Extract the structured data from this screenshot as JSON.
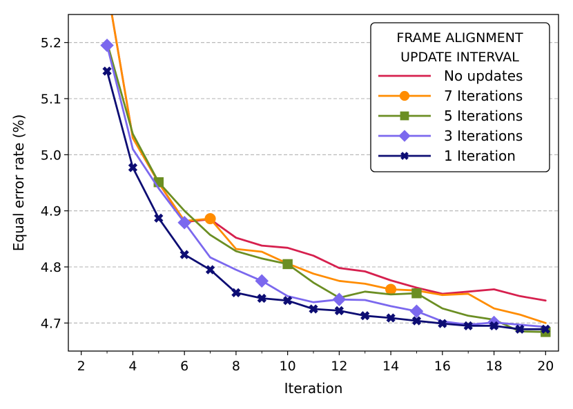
{
  "chart_data": {
    "type": "line",
    "title": "",
    "xlabel": "Iteration",
    "ylabel": "Equal error rate (%)",
    "xlim": [
      1.5,
      20.5
    ],
    "ylim": [
      4.65,
      5.25
    ],
    "xticks": [
      2,
      4,
      6,
      8,
      10,
      12,
      14,
      16,
      18,
      20
    ],
    "yticks": [
      4.7,
      4.8,
      4.9,
      5.0,
      5.1,
      5.2
    ],
    "grid": "y-dashed",
    "legend": {
      "placement": "top-right",
      "title_lines": [
        "FRAME ALIGNMENT",
        "UPDATE INTERVAL"
      ]
    },
    "series": [
      {
        "name": "No updates",
        "color": "#d6204e",
        "marker": "none",
        "x": [
          3,
          4,
          5,
          6,
          7,
          8,
          9,
          10,
          11,
          12,
          13,
          14,
          15,
          16,
          17,
          18,
          19,
          20
        ],
        "y": [
          5.3,
          5.03,
          4.95,
          4.88,
          4.885,
          4.852,
          4.838,
          4.834,
          4.82,
          4.798,
          4.792,
          4.776,
          4.763,
          4.752,
          4.756,
          4.76,
          4.748,
          4.74
        ]
      },
      {
        "name": "7 Iterations",
        "color": "#ff8c00",
        "marker": "circle",
        "x": [
          3,
          4,
          5,
          6,
          7,
          8,
          9,
          10,
          11,
          12,
          13,
          14,
          15,
          16,
          17,
          18,
          19,
          20
        ],
        "y": [
          5.3,
          5.03,
          4.95,
          4.882,
          4.886,
          4.832,
          4.827,
          4.806,
          4.788,
          4.775,
          4.77,
          4.76,
          4.758,
          4.75,
          4.752,
          4.726,
          4.715,
          4.7
        ],
        "marker_x": [
          7,
          14
        ]
      },
      {
        "name": "5 Iterations",
        "color": "#6b8e23",
        "marker": "square",
        "x": [
          3,
          4,
          5,
          6,
          7,
          8,
          9,
          10,
          11,
          12,
          13,
          14,
          15,
          16,
          17,
          18,
          19,
          20
        ],
        "y": [
          5.2,
          5.037,
          4.951,
          4.9,
          4.857,
          4.828,
          4.815,
          4.805,
          4.772,
          4.745,
          4.756,
          4.751,
          4.753,
          4.726,
          4.713,
          4.706,
          4.685,
          4.684
        ],
        "marker_x": [
          5,
          10,
          15,
          20
        ]
      },
      {
        "name": "3 Iterations",
        "color": "#7b68ee",
        "marker": "diamond",
        "x": [
          3,
          4,
          5,
          6,
          7,
          8,
          9,
          10,
          11,
          12,
          13,
          14,
          15,
          16,
          17,
          18,
          19,
          20
        ],
        "y": [
          5.195,
          5.01,
          4.94,
          4.879,
          4.817,
          4.795,
          4.775,
          4.748,
          4.737,
          4.742,
          4.741,
          4.73,
          4.721,
          4.703,
          4.697,
          4.701,
          4.697,
          4.693
        ],
        "marker_x": [
          3,
          6,
          9,
          12,
          15,
          18
        ]
      },
      {
        "name": "1 Iteration",
        "color": "#0d0d73",
        "marker": "x",
        "x": [
          3,
          4,
          5,
          6,
          7,
          8,
          9,
          10,
          11,
          12,
          13,
          14,
          15,
          16,
          17,
          18,
          19,
          20
        ],
        "y": [
          5.149,
          4.977,
          4.887,
          4.822,
          4.795,
          4.754,
          4.744,
          4.74,
          4.725,
          4.722,
          4.713,
          4.709,
          4.704,
          4.699,
          4.695,
          4.695,
          4.689,
          4.689
        ],
        "marker_x": [
          3,
          4,
          5,
          6,
          7,
          8,
          9,
          10,
          11,
          12,
          13,
          14,
          15,
          16,
          17,
          18,
          19,
          20
        ]
      }
    ]
  }
}
